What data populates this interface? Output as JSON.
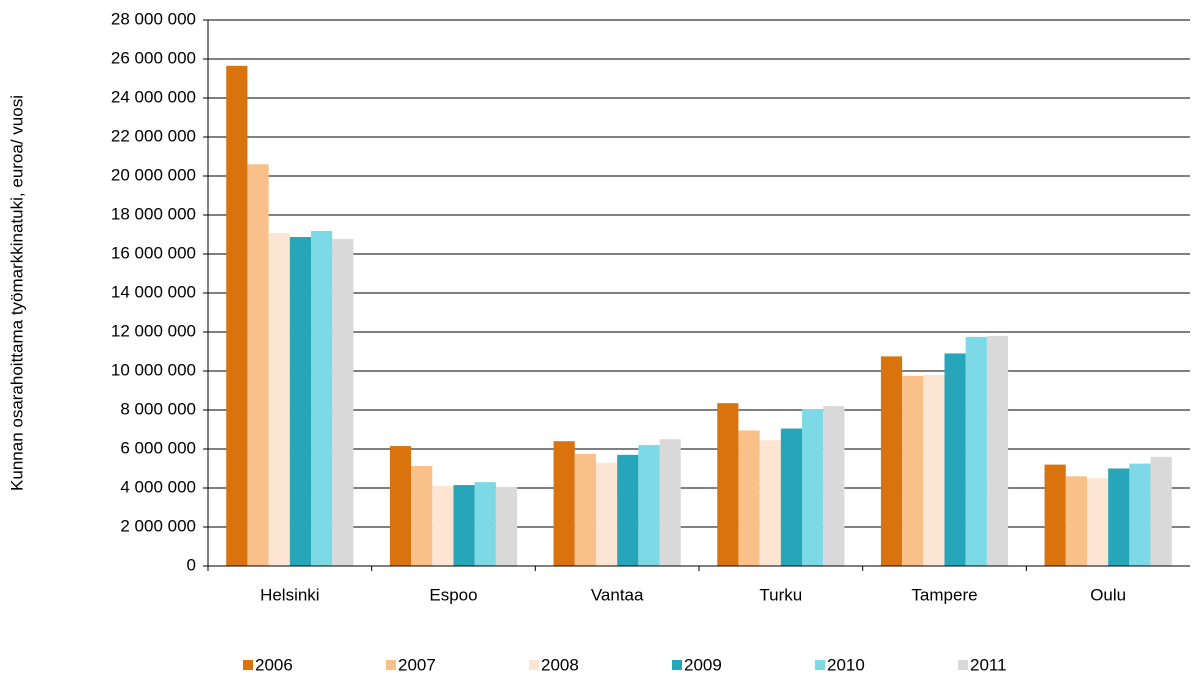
{
  "chart_data": {
    "type": "bar",
    "y_label": "Kunnan osarahoittama työmarkkinatuki, euroa/ vuosi",
    "categories": [
      "Helsinki",
      "Espoo",
      "Vantaa",
      "Turku",
      "Tampere",
      "Oulu"
    ],
    "series": [
      {
        "name": "2006",
        "color": "#d9730d",
        "values": [
          25650000,
          6150000,
          6400000,
          8350000,
          10750000,
          5200000
        ]
      },
      {
        "name": "2007",
        "color": "#f9c08a",
        "values": [
          20600000,
          5130000,
          5750000,
          6950000,
          9750000,
          4600000
        ]
      },
      {
        "name": "2008",
        "color": "#fde5d4",
        "values": [
          17080000,
          4100000,
          5300000,
          6450000,
          9800000,
          4500000
        ]
      },
      {
        "name": "2009",
        "color": "#26a6b8",
        "values": [
          16870000,
          4150000,
          5700000,
          7050000,
          10900000,
          5000000
        ]
      },
      {
        "name": "2010",
        "color": "#7dd9e6",
        "values": [
          17180000,
          4300000,
          6200000,
          8050000,
          11750000,
          5250000
        ]
      },
      {
        "name": "2011",
        "color": "#d9d9d9",
        "values": [
          16770000,
          4050000,
          6500000,
          8200000,
          11800000,
          5600000
        ]
      }
    ],
    "ylim": [
      0,
      28000000
    ],
    "yticks": [
      0,
      {
        "value": 2000000,
        "label": "2 000 000"
      },
      {
        "value": 4000000,
        "label": "4 000 000"
      },
      {
        "value": 6000000,
        "label": "6 000 000"
      },
      {
        "value": 8000000,
        "label": "8 000 000"
      },
      {
        "value": 10000000,
        "label": "10 000 000"
      },
      {
        "value": 12000000,
        "label": "12 000 000"
      },
      {
        "value": 14000000,
        "label": "14 000 000"
      },
      {
        "value": 16000000,
        "label": "16 000 000"
      },
      {
        "value": 18000000,
        "label": "18 000 000"
      },
      {
        "value": 20000000,
        "label": "20 000 000"
      },
      {
        "value": 22000000,
        "label": "22 000 000"
      },
      {
        "value": 24000000,
        "label": "24 000 000"
      },
      {
        "value": 26000000,
        "label": "26 000 000"
      },
      {
        "value": 28000000,
        "label": "28 000 000"
      }
    ],
    "grid": true,
    "legend": "bottom"
  }
}
